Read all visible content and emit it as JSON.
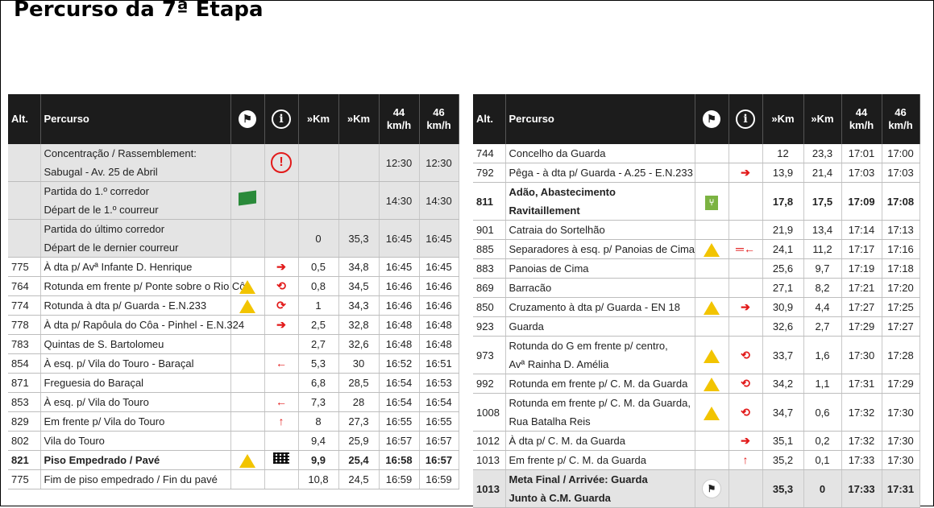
{
  "title": "Percurso da 7ª Etapa",
  "headers": {
    "alt": "Alt.",
    "percurso": "Percurso",
    "km1": "»Km",
    "km2": "»Km",
    "sp44_a": "44",
    "sp44_b": "km/h",
    "sp46_a": "46",
    "sp46_b": "km/h"
  },
  "colors": {
    "header_bg": "#1c1c1c",
    "highlight_row": "#e4e4e4",
    "arrow": "#e21a1a",
    "warning": "#f2c400"
  },
  "left": [
    {
      "alt": "",
      "l1": "Concentração / Rassemblement:",
      "l2": "Sabugal - Av. 25 de Abril",
      "icon": "",
      "info": "exclamation-circle-icon",
      "km1": "",
      "km2": "",
      "t44": "12:30",
      "t46": "12:30",
      "style": "hl tall"
    },
    {
      "alt": "",
      "l1": "Partida do 1.º corredor",
      "l2": "Départ de le 1.º courreur",
      "icon": "green-flag-icon",
      "info": "",
      "km1": "",
      "km2": "",
      "t44": "14:30",
      "t46": "14:30",
      "style": "hl tall"
    },
    {
      "alt": "",
      "l1": "Partida do último corredor",
      "l2": "Départ de le dernier courreur",
      "icon": "",
      "info": "",
      "km1": "0",
      "km2": "35,3",
      "t44": "16:45",
      "t46": "16:45",
      "style": "hl tall"
    },
    {
      "alt": "775",
      "l1": "À dta p/ Avª Infante D. Henrique",
      "icon": "",
      "info": "arrow-right-icon",
      "km1": "0,5",
      "km2": "34,8",
      "t44": "16:45",
      "t46": "16:45",
      "style": ""
    },
    {
      "alt": "764",
      "l1": "Rotunda em frente p/ Ponte sobre o Rio Côa",
      "icon": "warning-triangle-icon",
      "info": "roundabout-straight-icon",
      "km1": "0,8",
      "km2": "34,5",
      "t44": "16:46",
      "t46": "16:46",
      "style": ""
    },
    {
      "alt": "774",
      "l1": "Rotunda à dta p/ Guarda - E.N.233",
      "icon": "warning-triangle-icon",
      "info": "roundabout-right-icon",
      "km1": "1",
      "km2": "34,3",
      "t44": "16:46",
      "t46": "16:46",
      "style": ""
    },
    {
      "alt": "778",
      "l1": "À dta p/ Rapôula do Côa - Pinhel - E.N.324",
      "icon": "",
      "info": "arrow-right-icon",
      "km1": "2,5",
      "km2": "32,8",
      "t44": "16:48",
      "t46": "16:48",
      "style": ""
    },
    {
      "alt": "783",
      "l1": "Quintas de S. Bartolomeu",
      "icon": "",
      "info": "",
      "km1": "2,7",
      "km2": "32,6",
      "t44": "16:48",
      "t46": "16:48",
      "style": ""
    },
    {
      "alt": "854",
      "l1": "À esq. p/ Vila do Touro - Baraçal",
      "icon": "",
      "info": "arrow-left-icon",
      "km1": "5,3",
      "km2": "30",
      "t44": "16:52",
      "t46": "16:51",
      "style": ""
    },
    {
      "alt": "871",
      "l1": "Freguesia do Baraçal",
      "icon": "",
      "info": "",
      "km1": "6,8",
      "km2": "28,5",
      "t44": "16:54",
      "t46": "16:53",
      "style": ""
    },
    {
      "alt": "853",
      "l1": "À esq. p/ Vila do Touro",
      "icon": "",
      "info": "arrow-left-icon",
      "km1": "7,3",
      "km2": "28",
      "t44": "16:54",
      "t46": "16:54",
      "style": ""
    },
    {
      "alt": "829",
      "l1": "Em frente p/ Vila do Touro",
      "icon": "",
      "info": "arrow-up-icon",
      "km1": "8",
      "km2": "27,3",
      "t44": "16:55",
      "t46": "16:55",
      "style": ""
    },
    {
      "alt": "802",
      "l1": "Vila do Touro",
      "icon": "",
      "info": "",
      "km1": "9,4",
      "km2": "25,9",
      "t44": "16:57",
      "t46": "16:57",
      "style": ""
    },
    {
      "alt": "821",
      "l1": "Piso Empedrado / Pavé",
      "icon": "warning-triangle-icon",
      "info": "cobblestone-icon",
      "km1": "9,9",
      "km2": "25,4",
      "t44": "16:58",
      "t46": "16:57",
      "style": "bold"
    },
    {
      "alt": "775",
      "l1": "Fim de piso empedrado / Fin du pavé",
      "icon": "",
      "info": "",
      "km1": "10,8",
      "km2": "24,5",
      "t44": "16:59",
      "t46": "16:59",
      "style": ""
    }
  ],
  "right": [
    {
      "alt": "744",
      "l1": "Concelho da Guarda",
      "icon": "",
      "info": "",
      "km1": "12",
      "km2": "23,3",
      "t44": "17:01",
      "t46": "17:00",
      "style": ""
    },
    {
      "alt": "792",
      "l1": "Pêga - à dta p/ Guarda - A.25 - E.N.233",
      "icon": "",
      "info": "arrow-right-icon",
      "km1": "13,9",
      "km2": "21,4",
      "t44": "17:03",
      "t46": "17:03",
      "style": ""
    },
    {
      "alt": "811",
      "l1": "Adão, Abastecimento",
      "l2": "Ravitaillement",
      "icon": "food-supply-icon",
      "info": "",
      "km1": "17,8",
      "km2": "17,5",
      "t44": "17:09",
      "t46": "17:08",
      "style": "bold tall"
    },
    {
      "alt": "901",
      "l1": "Catraia do Sortelhão",
      "icon": "",
      "info": "",
      "km1": "21,9",
      "km2": "13,4",
      "t44": "17:14",
      "t46": "17:13",
      "style": ""
    },
    {
      "alt": "885",
      "l1": "Separadores à esq. p/ Panoias de Cima",
      "icon": "warning-triangle-icon",
      "info": "separator-left-icon",
      "km1": "24,1",
      "km2": "11,2",
      "t44": "17:17",
      "t46": "17:16",
      "style": ""
    },
    {
      "alt": "883",
      "l1": "Panoias de Cima",
      "icon": "",
      "info": "",
      "km1": "25,6",
      "km2": "9,7",
      "t44": "17:19",
      "t46": "17:18",
      "style": ""
    },
    {
      "alt": "869",
      "l1": "Barracão",
      "icon": "",
      "info": "",
      "km1": "27,1",
      "km2": "8,2",
      "t44": "17:21",
      "t46": "17:20",
      "style": ""
    },
    {
      "alt": "850",
      "l1": "Cruzamento à dta p/ Guarda - EN 18",
      "icon": "warning-triangle-icon",
      "info": "arrow-right-icon",
      "km1": "30,9",
      "km2": "4,4",
      "t44": "17:27",
      "t46": "17:25",
      "style": ""
    },
    {
      "alt": "923",
      "l1": "Guarda",
      "icon": "",
      "info": "",
      "km1": "32,6",
      "km2": "2,7",
      "t44": "17:29",
      "t46": "17:27",
      "style": ""
    },
    {
      "alt": "973",
      "l1": "Rotunda do G em frente p/ centro,",
      "l2": "Avª Rainha D. Amélia",
      "icon": "warning-triangle-icon",
      "info": "roundabout-straight-icon",
      "km1": "33,7",
      "km2": "1,6",
      "t44": "17:30",
      "t46": "17:28",
      "style": "tall"
    },
    {
      "alt": "992",
      "l1": "Rotunda em frente p/ C. M. da Guarda",
      "icon": "warning-triangle-icon",
      "info": "roundabout-straight-icon",
      "km1": "34,2",
      "km2": "1,1",
      "t44": "17:31",
      "t46": "17:29",
      "style": ""
    },
    {
      "alt": "1008",
      "l1": "Rotunda em frente p/ C. M. da Guarda,",
      "l2": "Rua Batalha Reis",
      "icon": "warning-triangle-icon",
      "info": "roundabout-straight-icon",
      "km1": "34,7",
      "km2": "0,6",
      "t44": "17:32",
      "t46": "17:30",
      "style": "tall"
    },
    {
      "alt": "1012",
      "l1": "À dta p/ C. M. da Guarda",
      "icon": "",
      "info": "arrow-right-icon",
      "km1": "35,1",
      "km2": "0,2",
      "t44": "17:32",
      "t46": "17:30",
      "style": ""
    },
    {
      "alt": "1013",
      "l1": "Em frente p/ C. M. da Guarda",
      "icon": "",
      "info": "arrow-up-icon",
      "km1": "35,2",
      "km2": "0,1",
      "t44": "17:33",
      "t46": "17:30",
      "style": ""
    },
    {
      "alt": "1013",
      "l1": "Meta Final / Arrivée: Guarda",
      "l2": "Junto à C.M. Guarda",
      "icon": "finish-flag-icon",
      "info": "",
      "km1": "35,3",
      "km2": "0",
      "t44": "17:33",
      "t46": "17:31",
      "style": "hl bold tall"
    }
  ]
}
